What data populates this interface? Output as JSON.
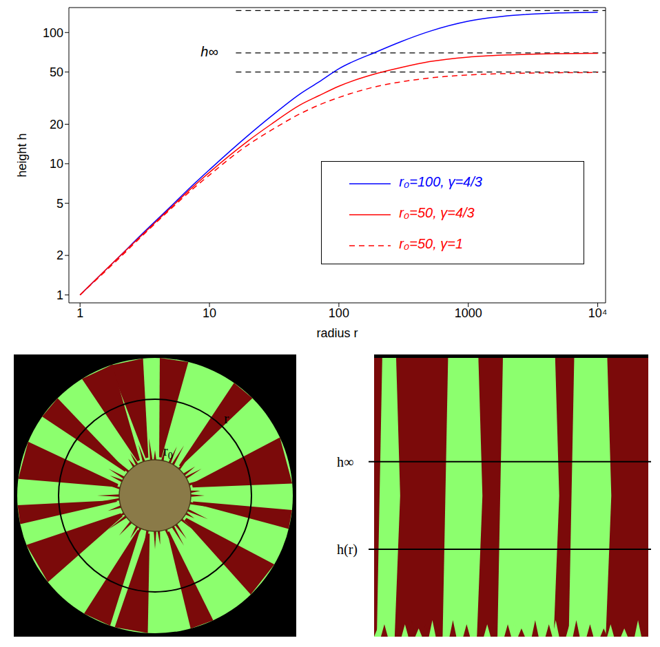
{
  "chart_data": {
    "type": "line",
    "xlabel": "radius r",
    "ylabel": "height h",
    "log": true,
    "xlim": [
      0.82,
      11500
    ],
    "ylim": [
      0.87,
      155
    ],
    "xticks": [
      1,
      10,
      100,
      1000,
      {
        "value": 10000,
        "label": "10⁴"
      }
    ],
    "yticks": [
      1,
      2,
      5,
      10,
      20,
      50,
      100
    ],
    "x": [
      1,
      2,
      3,
      5,
      7,
      10,
      20,
      30,
      50,
      70,
      100,
      200,
      300,
      500,
      1000,
      2000,
      5000,
      10000
    ],
    "series": [
      {
        "name": "r₀=100, γ=4/3",
        "color": "#0000ff",
        "line_style": "solid",
        "values": [
          1,
          1.95,
          2.9,
          4.7,
          6.5,
          9.0,
          16.5,
          23,
          34,
          42,
          53,
          72,
          85,
          102,
          122,
          134,
          141,
          143
        ]
      },
      {
        "name": "r₀=50, γ=4/3",
        "color": "#ff0000",
        "line_style": "solid",
        "values": [
          1,
          1.95,
          2.85,
          4.6,
          6.3,
          8.6,
          15,
          20,
          28,
          33,
          39,
          49,
          54,
          60,
          65,
          67.5,
          69,
          69.5
        ]
      },
      {
        "name": "r₀=50, γ=1",
        "color": "#ff0000",
        "line_style": "dashed",
        "values": [
          1,
          1.9,
          2.8,
          4.5,
          6.1,
          8.2,
          14,
          18,
          24,
          28,
          32,
          39,
          42,
          45,
          47.5,
          48.7,
          49.4,
          49.6
        ]
      }
    ],
    "legend": "lower right",
    "reference_lines": [
      {
        "value": 147,
        "x_start": 16,
        "color": "#000000",
        "line_style": "dashed"
      },
      {
        "value": 70,
        "x_start": 16,
        "color": "#000000",
        "line_style": "dashed"
      },
      {
        "value": 50,
        "x_start": 16,
        "color": "#000000",
        "line_style": "dashed"
      }
    ],
    "annotations": [
      {
        "text": "h∞",
        "x": 10,
        "y": 72
      }
    ]
  },
  "panels": {
    "left": {
      "labels": [
        "r",
        {
          "text": "r",
          "sub": "0"
        }
      ]
    },
    "right": {
      "labels": [
        "h∞",
        "h(r)"
      ]
    }
  }
}
